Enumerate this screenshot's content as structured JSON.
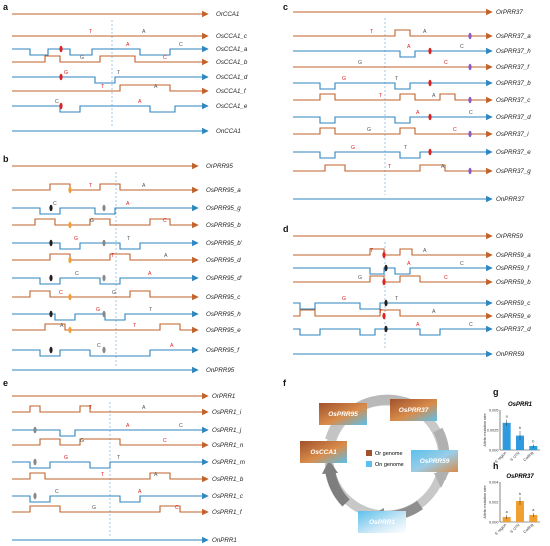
{
  "colors": {
    "orange": "#C0622A",
    "blue": "#2E86C1",
    "grey": "#9a9a9a"
  },
  "panels": {
    "a": {
      "letter": "a",
      "labels": [
        "OrCCA1",
        "OsCCA1_c",
        "OsCCA1_a",
        "OsCCA1_b",
        "OsCCA1_d",
        "OsCCA1_f",
        "OsCCA1_e",
        "OnCCA1"
      ]
    },
    "b": {
      "letter": "b",
      "labels": [
        "OrPRR95",
        "OsPRR95_a",
        "OsPRR95_g",
        "OsPRR95_b",
        "OsPRR95_b'",
        "OsPRR95_d",
        "OsPRR95_d'",
        "OsPRR95_c",
        "OsPRR95_h",
        "OsPRR95_e",
        "OsPRR95_f",
        "OnPRR95"
      ]
    },
    "c": {
      "letter": "c",
      "labels": [
        "OrPRR37",
        "OsPRR37_a",
        "OsPRR37_h",
        "OsPRR37_f",
        "OsPRR37_b",
        "OsPRR37_c",
        "OsPRR37_d",
        "OsPRR37_i",
        "OsPRR37_e",
        "OsPRR37_g",
        "OnPRR37"
      ]
    },
    "d": {
      "letter": "d",
      "labels": [
        "OrPRR59",
        "OsPRR59_a",
        "OsPRR59_f",
        "OsPRR59_b",
        "OsPRR59_c",
        "OsPRR59_e",
        "OsPRR37_d",
        "OnPRR59"
      ]
    },
    "e": {
      "letter": "e",
      "labels": [
        "OrPRR1",
        "OsPRR1_i",
        "OsPRR1_j",
        "OsPRR1_n",
        "OsPRR1_m",
        "OsPRR1_b",
        "OsPRR1_c",
        "OsPRR1_f",
        "OnPRR1"
      ]
    }
  },
  "cycle": {
    "letter": "f",
    "genes": [
      "OsPRR95",
      "OsPRR37",
      "OsPRR59",
      "OsPRR1",
      "OsCCA1"
    ],
    "legend": [
      {
        "label": "Or genome",
        "color": "#A0522D"
      },
      {
        "label": "On genome",
        "color": "#5BC0EB"
      }
    ]
  },
  "chart_data": [
    {
      "type": "bar",
      "panel": "g",
      "title": "OsPRR1",
      "ylabel": "Allelic mutation rate",
      "categories": [
        "5' region",
        "5' UTR",
        "Coding"
      ],
      "values": [
        0.0034,
        0.0018,
        0.0005
      ],
      "errors": [
        0.0004,
        0.0006,
        0.0002
      ],
      "letters": [
        "a",
        "b",
        "b"
      ],
      "ylim": [
        0,
        0.005
      ],
      "yticks": [
        "0.000",
        "0.0025",
        "0.005"
      ],
      "colors": [
        "#2E9BE0",
        "#2E9BE0",
        "#2E9BE0"
      ]
    },
    {
      "type": "bar",
      "panel": "h",
      "title": "OsPRR37",
      "ylabel": "Allelic mutation rate",
      "categories": [
        "5' region",
        "5' UTR",
        "Coding"
      ],
      "values": [
        0.0005,
        0.0021,
        0.0007
      ],
      "errors": [
        0.0002,
        0.0004,
        0.0002
      ],
      "letters": [
        "a",
        "b",
        "a"
      ],
      "ylim": [
        0,
        0.004
      ],
      "yticks": [
        "0.000",
        "0.002",
        "0.004"
      ],
      "colors": [
        "#F0A030",
        "#F0A030",
        "#F0A030"
      ]
    }
  ]
}
